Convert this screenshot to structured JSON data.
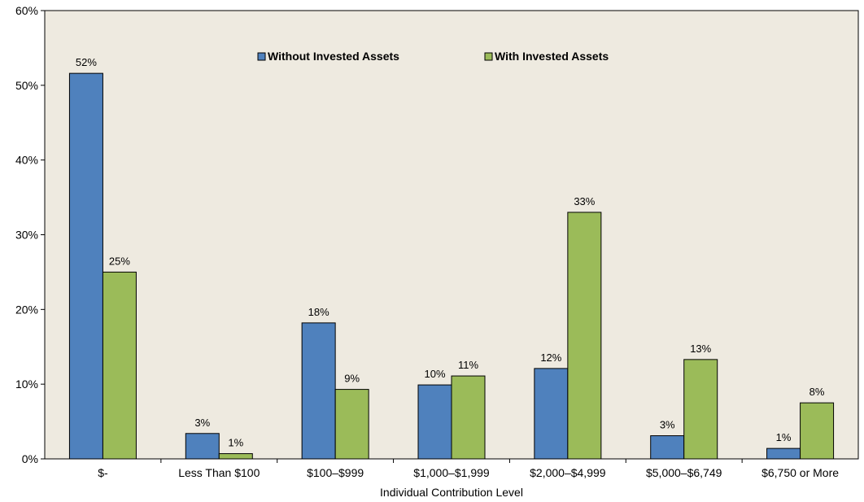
{
  "chart_data": {
    "type": "bar",
    "title": "",
    "xlabel": "Individual Contribution Level",
    "ylabel": "",
    "categories": [
      "$-",
      "Less Than $100",
      "$100–$999",
      "$1,000–$1,999",
      "$2,000–$4,999",
      "$5,000–$6,749",
      "$6,750 or More"
    ],
    "series": [
      {
        "name": "Without Invested Assets",
        "color": "#4F81BD",
        "values": [
          51.6,
          3.4,
          18.2,
          9.9,
          12.1,
          3.1,
          1.4
        ],
        "labels": [
          "52%",
          "3%",
          "18%",
          "10%",
          "12%",
          "3%",
          "1%"
        ]
      },
      {
        "name": "With Invested Assets",
        "color": "#9BBB59",
        "values": [
          25.0,
          0.7,
          9.3,
          11.1,
          33.0,
          13.3,
          7.5
        ],
        "labels": [
          "25%",
          "1%",
          "9%",
          "11%",
          "33%",
          "13%",
          "8%"
        ]
      }
    ],
    "ylim": [
      0,
      60
    ],
    "yticks": [
      0,
      10,
      20,
      30,
      40,
      50,
      60
    ],
    "ytick_labels": [
      "0%",
      "10%",
      "20%",
      "30%",
      "40%",
      "50%",
      "60%"
    ],
    "grid": false,
    "legend_position": "top-center",
    "plot_background": "#EEEAE0"
  }
}
